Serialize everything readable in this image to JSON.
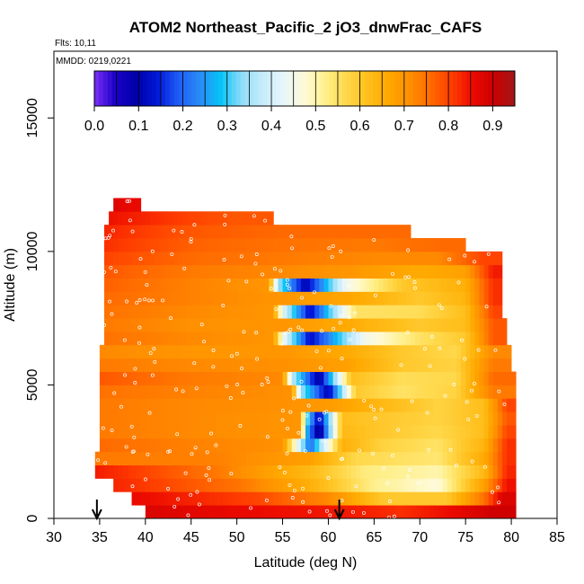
{
  "chart_data": {
    "type": "heatmap",
    "title": "ATOM2 Northeast_Pacific_2 jO3_dnwFrac_CAFS",
    "flights_label": "Flts: 10,11",
    "dates_label": "MMDD: 0219,0221",
    "xlabel": "Latitude (deg N)",
    "ylabel": "Altitude (m)",
    "xlim": [
      30,
      85
    ],
    "ylim": [
      0,
      17500
    ],
    "x_ticks": [
      "30",
      "35",
      "40",
      "45",
      "50",
      "55",
      "60",
      "65",
      "70",
      "75",
      "80",
      "85"
    ],
    "y_ticks": [
      "0",
      "5000",
      "10000",
      "15000"
    ],
    "colorbar": {
      "range": [
        0,
        0.95
      ],
      "tick_labels": [
        "0.0",
        "0.1",
        "0.2",
        "0.3",
        "0.4",
        "0.5",
        "0.6",
        "0.7",
        "0.8",
        "0.9"
      ],
      "colors": [
        "#7b2ff7",
        "#1a00c8",
        "#0000a8",
        "#0018d8",
        "#1f5cf5",
        "#2b8af7",
        "#05c3f7",
        "#8fdcf9",
        "#c7ecfb",
        "#e8f6fb",
        "#fffad6",
        "#ffef8a",
        "#ffd84a",
        "#ffbf1c",
        "#ffa800",
        "#ff8f00",
        "#ff6a00",
        "#ff3c00",
        "#ec0a00",
        "#cc0000",
        "#a01818"
      ]
    },
    "arrows_latitude": [
      34.7,
      61.2
    ],
    "layers": [
      {
        "alt_range": [
          0,
          500
        ],
        "lat_range": [
          40,
          80.5
        ],
        "segments": [
          [
            40,
            0.88
          ],
          [
            55,
            0.85
          ],
          [
            62,
            0.84
          ],
          [
            68,
            0.82
          ],
          [
            74,
            0.86
          ],
          [
            78,
            0.9
          ]
        ]
      },
      {
        "alt_range": [
          500,
          1000
        ],
        "lat_range": [
          38.5,
          80.5
        ],
        "segments": [
          [
            38.5,
            0.86
          ],
          [
            52,
            0.8
          ],
          [
            60,
            0.72
          ],
          [
            66,
            0.6
          ],
          [
            73,
            0.6
          ],
          [
            77,
            0.75
          ],
          [
            79,
            0.88
          ]
        ]
      },
      {
        "alt_range": [
          1000,
          1500
        ],
        "lat_range": [
          36.5,
          80.5
        ],
        "segments": [
          [
            36.5,
            0.83
          ],
          [
            50,
            0.75
          ],
          [
            58,
            0.65
          ],
          [
            65,
            0.52
          ],
          [
            72,
            0.47
          ],
          [
            77,
            0.68
          ],
          [
            79.5,
            0.85
          ]
        ]
      },
      {
        "alt_range": [
          1500,
          2000
        ],
        "lat_range": [
          34.5,
          80.5
        ],
        "segments": [
          [
            34.5,
            0.84
          ],
          [
            48,
            0.74
          ],
          [
            58,
            0.63
          ],
          [
            64,
            0.53
          ],
          [
            72,
            0.5
          ],
          [
            77,
            0.63
          ],
          [
            79.5,
            0.83
          ]
        ]
      },
      {
        "alt_range": [
          2000,
          2500
        ],
        "lat_range": [
          34.5,
          80.5
        ],
        "segments": [
          [
            34.5,
            0.74
          ],
          [
            48,
            0.73
          ],
          [
            58,
            0.68
          ],
          [
            63,
            0.57
          ],
          [
            72,
            0.54
          ],
          [
            77,
            0.66
          ],
          [
            79.5,
            0.82
          ]
        ]
      },
      {
        "alt_range": [
          2500,
          3000
        ],
        "lat_range": [
          35,
          80.5
        ],
        "segments": [
          [
            35,
            0.76
          ],
          [
            45,
            0.73
          ],
          [
            55,
            0.71
          ],
          [
            58,
            0.2
          ],
          [
            61.5,
            0.65
          ],
          [
            66,
            0.58
          ],
          [
            72,
            0.55
          ],
          [
            77,
            0.64
          ],
          [
            79.5,
            0.82
          ]
        ]
      },
      {
        "alt_range": [
          3000,
          3500
        ],
        "lat_range": [
          35,
          80.5
        ],
        "segments": [
          [
            35,
            0.74
          ],
          [
            45,
            0.72
          ],
          [
            57,
            0.7
          ],
          [
            57.5,
            0.3
          ],
          [
            59,
            0.05
          ],
          [
            61.5,
            0.63
          ],
          [
            66,
            0.6
          ],
          [
            72,
            0.57
          ],
          [
            77,
            0.62
          ],
          [
            79.5,
            0.8
          ]
        ]
      },
      {
        "alt_range": [
          3500,
          4000
        ],
        "lat_range": [
          35,
          80.5
        ],
        "segments": [
          [
            35,
            0.74
          ],
          [
            45,
            0.72
          ],
          [
            57,
            0.7
          ],
          [
            57.5,
            0.35
          ],
          [
            59,
            0.1
          ],
          [
            61.5,
            0.62
          ],
          [
            66,
            0.6
          ],
          [
            72,
            0.58
          ],
          [
            77,
            0.62
          ],
          [
            79.5,
            0.78
          ]
        ]
      },
      {
        "alt_range": [
          4000,
          4500
        ],
        "lat_range": [
          35,
          80.5
        ],
        "segments": [
          [
            35,
            0.74
          ],
          [
            45,
            0.72
          ],
          [
            55,
            0.71
          ],
          [
            60,
            0.69
          ],
          [
            66,
            0.63
          ],
          [
            72,
            0.58
          ],
          [
            77,
            0.62
          ],
          [
            79.5,
            0.8
          ]
        ]
      },
      {
        "alt_range": [
          4500,
          5000
        ],
        "lat_range": [
          35,
          80.5
        ],
        "segments": [
          [
            35,
            0.75
          ],
          [
            45,
            0.73
          ],
          [
            56,
            0.71
          ],
          [
            57,
            0.35
          ],
          [
            60,
            0.1
          ],
          [
            63,
            0.6
          ],
          [
            68,
            0.55
          ],
          [
            74,
            0.58
          ],
          [
            78,
            0.74
          ]
        ]
      },
      {
        "alt_range": [
          5000,
          5500
        ],
        "lat_range": [
          35,
          80.5
        ],
        "segments": [
          [
            35,
            0.78
          ],
          [
            45,
            0.74
          ],
          [
            55,
            0.72
          ],
          [
            56,
            0.38
          ],
          [
            59,
            0.08
          ],
          [
            62.5,
            0.62
          ],
          [
            68,
            0.56
          ],
          [
            74,
            0.57
          ],
          [
            78,
            0.76
          ]
        ]
      },
      {
        "alt_range": [
          5500,
          6000
        ],
        "lat_range": [
          35,
          80
        ],
        "segments": [
          [
            35,
            0.74
          ],
          [
            45,
            0.72
          ],
          [
            55,
            0.71
          ],
          [
            62,
            0.68
          ],
          [
            68,
            0.6
          ],
          [
            74,
            0.58
          ],
          [
            78,
            0.74
          ]
        ]
      },
      {
        "alt_range": [
          6000,
          6500
        ],
        "lat_range": [
          35,
          80
        ],
        "segments": [
          [
            35,
            0.72
          ],
          [
            45,
            0.7
          ],
          [
            55,
            0.7
          ],
          [
            62,
            0.66
          ],
          [
            68,
            0.6
          ],
          [
            74,
            0.57
          ],
          [
            78,
            0.72
          ]
        ]
      },
      {
        "alt_range": [
          6500,
          7000
        ],
        "lat_range": [
          35.5,
          79.5
        ],
        "segments": [
          [
            35.5,
            0.75
          ],
          [
            45,
            0.72
          ],
          [
            54,
            0.7
          ],
          [
            55,
            0.45
          ],
          [
            58,
            0.12
          ],
          [
            64,
            0.45
          ],
          [
            70,
            0.55
          ],
          [
            75,
            0.6
          ],
          [
            78,
            0.78
          ]
        ]
      },
      {
        "alt_range": [
          7000,
          7500
        ],
        "lat_range": [
          35.5,
          79.5
        ],
        "segments": [
          [
            35.5,
            0.74
          ],
          [
            45,
            0.71
          ],
          [
            55,
            0.7
          ],
          [
            62,
            0.66
          ],
          [
            70,
            0.6
          ],
          [
            75,
            0.62
          ],
          [
            78,
            0.78
          ]
        ]
      },
      {
        "alt_range": [
          7500,
          8000
        ],
        "lat_range": [
          35.5,
          79
        ],
        "segments": [
          [
            35.5,
            0.75
          ],
          [
            45,
            0.72
          ],
          [
            54,
            0.7
          ],
          [
            55,
            0.42
          ],
          [
            58,
            0.12
          ],
          [
            63,
            0.55
          ],
          [
            70,
            0.56
          ],
          [
            75,
            0.62
          ],
          [
            78,
            0.8
          ]
        ]
      },
      {
        "alt_range": [
          8000,
          8500
        ],
        "lat_range": [
          35.5,
          79
        ],
        "segments": [
          [
            35.5,
            0.76
          ],
          [
            45,
            0.73
          ],
          [
            55,
            0.7
          ],
          [
            62,
            0.67
          ],
          [
            70,
            0.6
          ],
          [
            75,
            0.64
          ],
          [
            78,
            0.82
          ]
        ]
      },
      {
        "alt_range": [
          8500,
          9000
        ],
        "lat_range": [
          35.5,
          79
        ],
        "segments": [
          [
            35.5,
            0.77
          ],
          [
            45,
            0.73
          ],
          [
            53.5,
            0.7
          ],
          [
            54.5,
            0.35
          ],
          [
            57.5,
            0.1
          ],
          [
            62,
            0.45
          ],
          [
            68,
            0.6
          ],
          [
            75,
            0.65
          ],
          [
            78,
            0.82
          ]
        ]
      },
      {
        "alt_range": [
          9000,
          9500
        ],
        "lat_range": [
          35.5,
          79
        ],
        "segments": [
          [
            35.5,
            0.78
          ],
          [
            45,
            0.74
          ],
          [
            55,
            0.72
          ],
          [
            62,
            0.7
          ],
          [
            70,
            0.66
          ],
          [
            75,
            0.68
          ],
          [
            78,
            0.84
          ]
        ]
      },
      {
        "alt_range": [
          9500,
          10000
        ],
        "lat_range": [
          35.5,
          79
        ],
        "segments": [
          [
            35.5,
            0.8
          ],
          [
            45,
            0.76
          ],
          [
            55,
            0.74
          ],
          [
            65,
            0.72
          ],
          [
            72,
            0.72
          ],
          [
            77,
            0.8
          ]
        ]
      },
      {
        "alt_range": [
          10000,
          10500
        ],
        "lat_range": [
          35.5,
          75
        ],
        "segments": [
          [
            35.5,
            0.82
          ],
          [
            45,
            0.77
          ],
          [
            55,
            0.75
          ],
          [
            65,
            0.74
          ],
          [
            72,
            0.76
          ]
        ]
      },
      {
        "alt_range": [
          10500,
          11000
        ],
        "lat_range": [
          35.5,
          69
        ],
        "segments": [
          [
            35.5,
            0.83
          ],
          [
            45,
            0.78
          ],
          [
            55,
            0.76
          ],
          [
            65,
            0.76
          ]
        ]
      },
      {
        "alt_range": [
          11000,
          11500
        ],
        "lat_range": [
          36,
          54
        ],
        "segments": [
          [
            36,
            0.85
          ],
          [
            45,
            0.8
          ],
          [
            50,
            0.78
          ]
        ]
      },
      {
        "alt_range": [
          11500,
          12000
        ],
        "lat_range": [
          36.5,
          39.5
        ],
        "segments": [
          [
            36.5,
            0.88
          ],
          [
            38,
            0.86
          ]
        ]
      }
    ]
  }
}
